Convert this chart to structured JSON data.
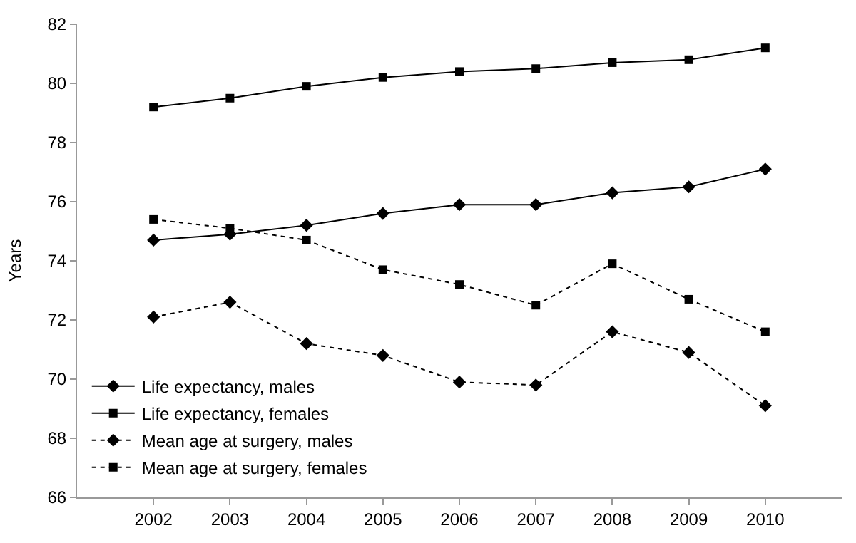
{
  "chart_data": {
    "type": "line",
    "ylabel": "Years",
    "x": [
      2002,
      2003,
      2004,
      2005,
      2006,
      2007,
      2008,
      2009,
      2010
    ],
    "xlim": [
      2001,
      2011
    ],
    "xticks": [
      2002,
      2003,
      2004,
      2005,
      2006,
      2007,
      2008,
      2009,
      2010
    ],
    "ylim": [
      66,
      82
    ],
    "yticks": [
      66,
      68,
      70,
      72,
      74,
      76,
      78,
      80,
      82
    ],
    "grid": false,
    "legend": "bottom left",
    "series": [
      {
        "name": "Life expectancy, males",
        "color": "#000000",
        "marker": "diamond",
        "line_style": "solid",
        "values": [
          74.7,
          74.9,
          75.2,
          75.6,
          75.9,
          75.9,
          76.3,
          76.5,
          77.1
        ]
      },
      {
        "name": "Life expectancy, females",
        "color": "#000000",
        "marker": "square",
        "line_style": "solid",
        "values": [
          79.2,
          79.5,
          79.9,
          80.2,
          80.4,
          80.5,
          80.7,
          80.8,
          81.2
        ]
      },
      {
        "name": "Mean age at surgery, males",
        "color": "#000000",
        "marker": "diamond",
        "line_style": "dotted",
        "values": [
          72.1,
          72.6,
          71.2,
          70.8,
          69.9,
          69.8,
          71.6,
          70.9,
          69.1
        ]
      },
      {
        "name": "Mean age at surgery, females",
        "color": "#000000",
        "marker": "square",
        "line_style": "dotted",
        "values": [
          75.4,
          75.1,
          74.7,
          73.7,
          73.2,
          72.5,
          73.9,
          72.7,
          71.6
        ]
      }
    ]
  }
}
